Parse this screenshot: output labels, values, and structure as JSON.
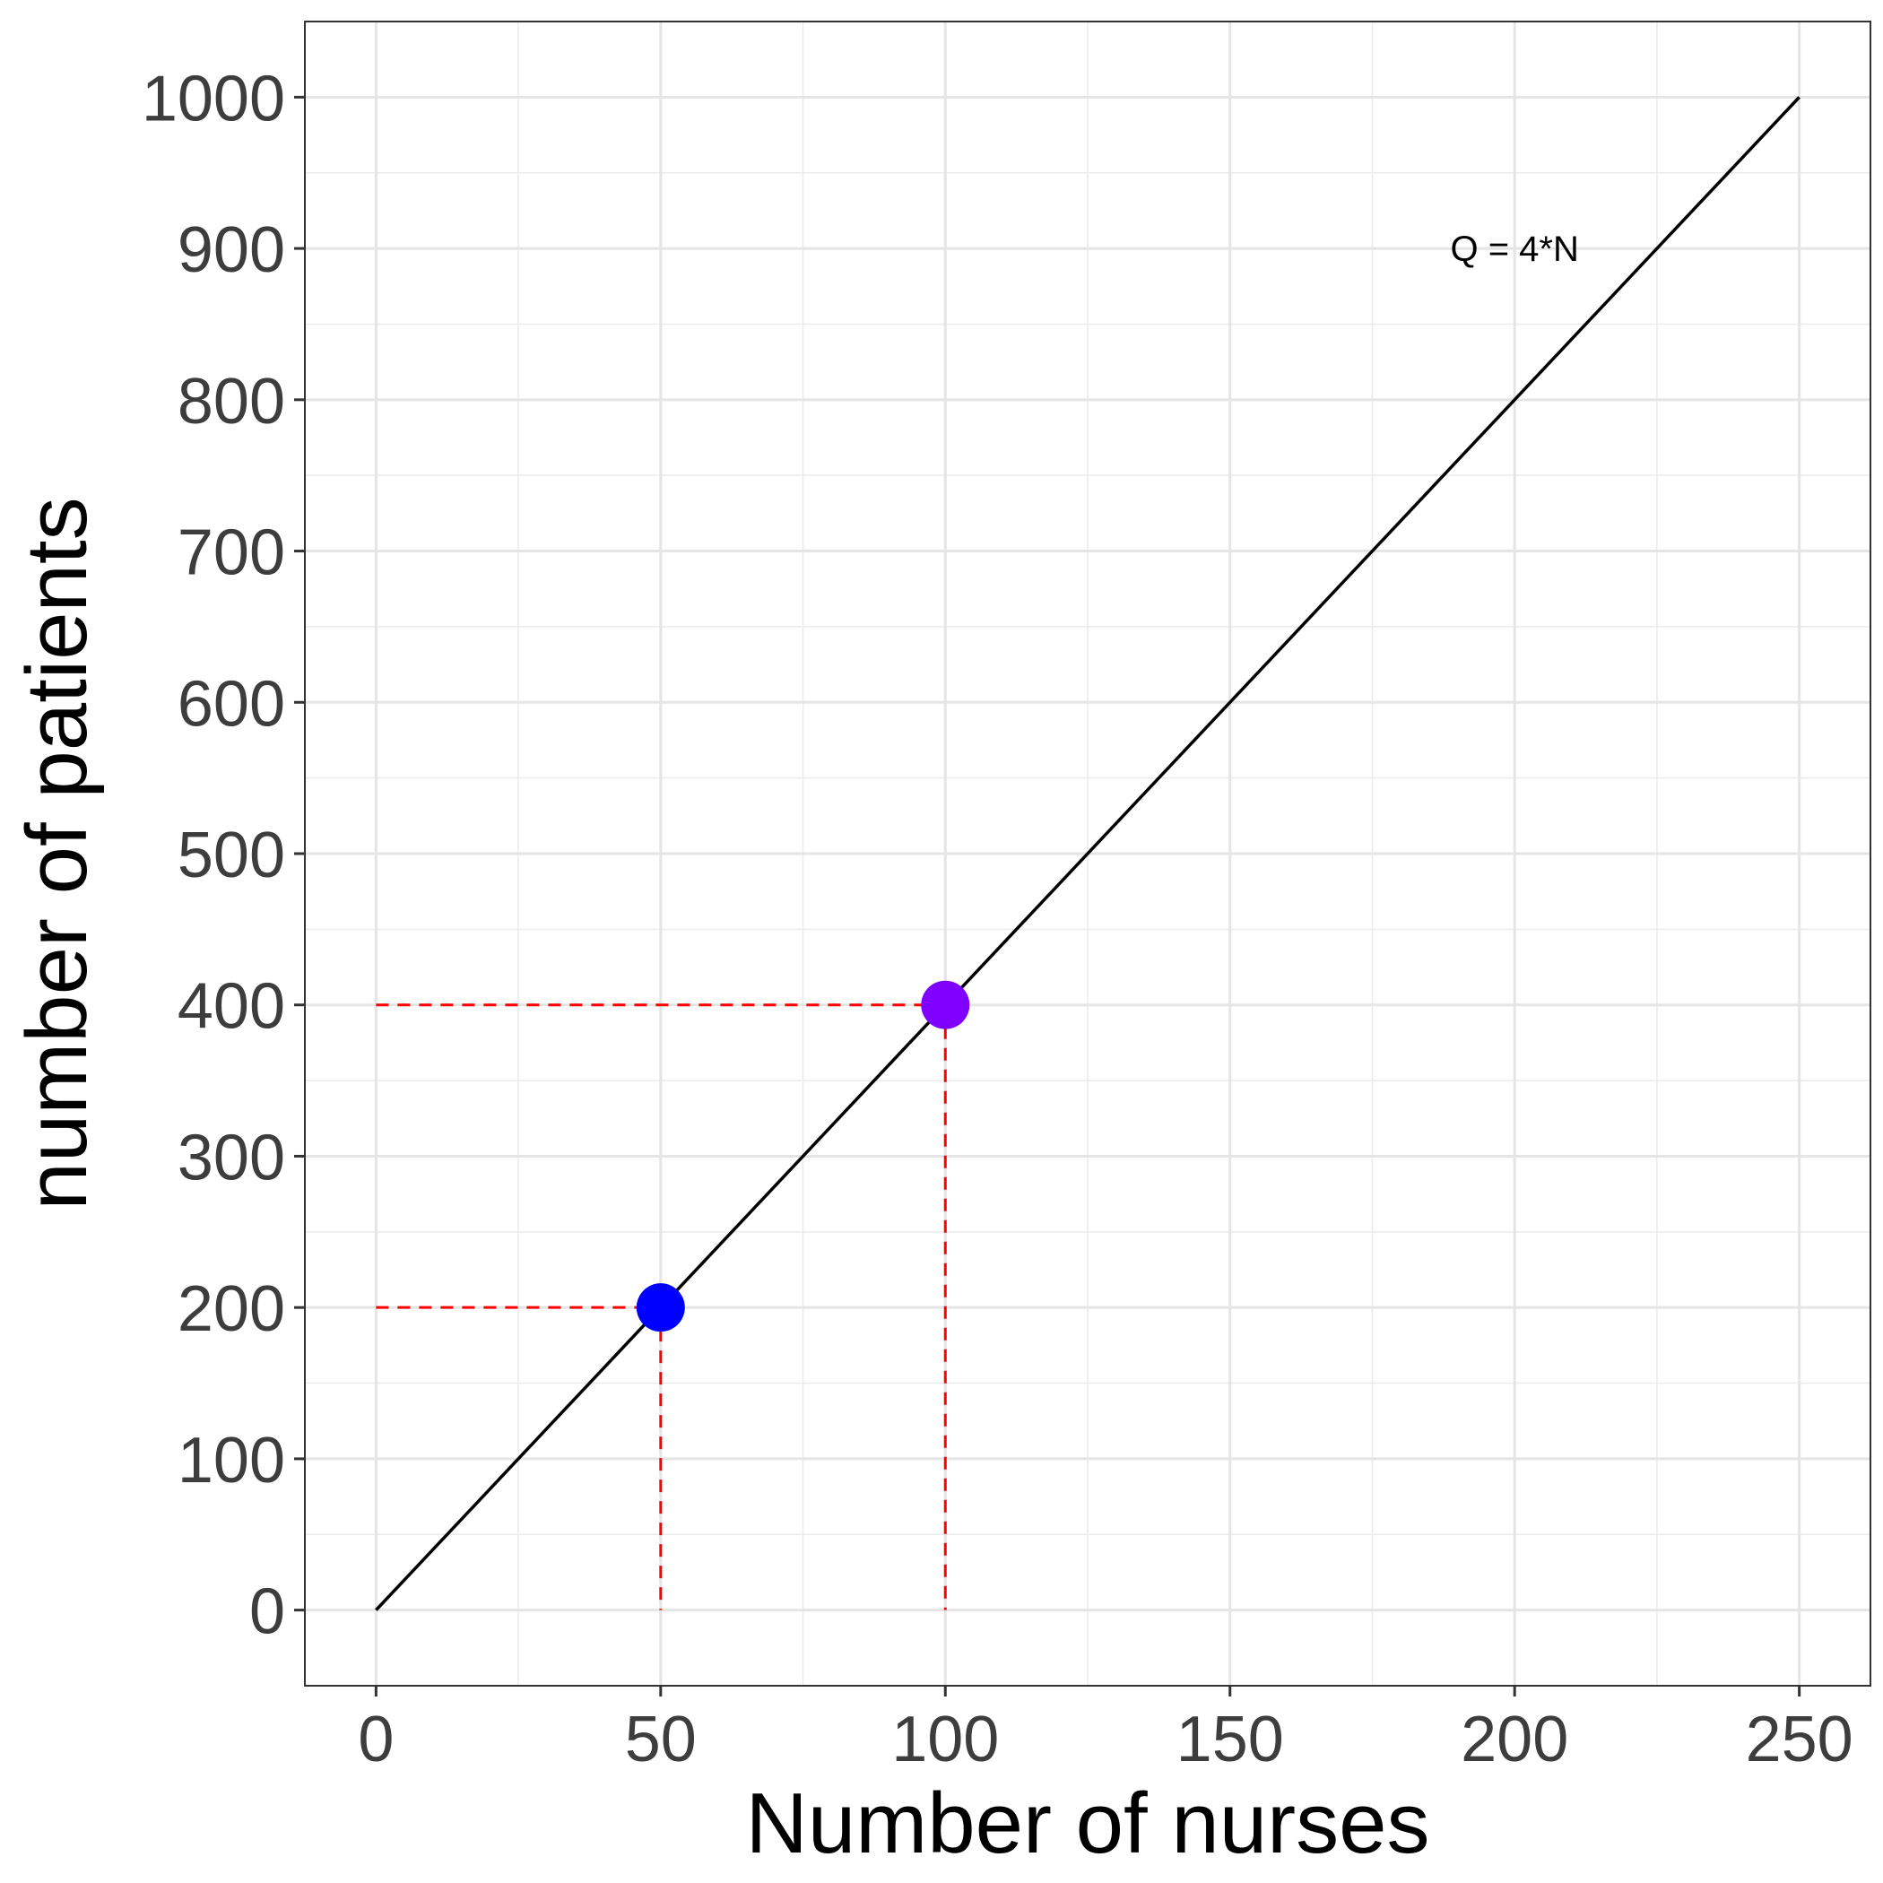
{
  "chart_data": {
    "type": "line",
    "title": "",
    "xlabel": "Number of nurses",
    "ylabel": "number of patients",
    "xlim": [
      -12.5,
      262.5
    ],
    "ylim": [
      -50,
      1050
    ],
    "x_ticks": [
      0,
      50,
      100,
      150,
      200,
      250
    ],
    "y_ticks": [
      0,
      100,
      200,
      300,
      400,
      500,
      600,
      700,
      800,
      900,
      1000
    ],
    "x_minor_ticks": [
      25,
      75,
      125,
      175,
      225
    ],
    "y_minor_ticks": [
      50,
      150,
      250,
      350,
      450,
      550,
      650,
      750,
      850,
      950
    ],
    "grid": true,
    "series": [
      {
        "x": [
          0,
          250
        ],
        "y": [
          0,
          1000
        ],
        "color": "#000000"
      }
    ],
    "points": [
      {
        "x": 50,
        "y": 200,
        "color": "#0000ff"
      },
      {
        "x": 100,
        "y": 400,
        "color": "#7f00ff"
      }
    ],
    "guides": [
      {
        "x": 50,
        "y": 200,
        "color": "#ff0000"
      },
      {
        "x": 100,
        "y": 400,
        "color": "#ff0000"
      }
    ],
    "annotations": [
      {
        "text": "Q = 4*N",
        "x": 200,
        "y": 900
      }
    ]
  }
}
